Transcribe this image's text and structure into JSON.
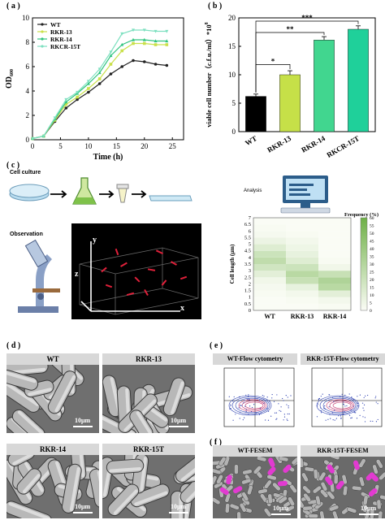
{
  "panels": {
    "a": "( a )",
    "b": "( b )",
    "c": "( c )",
    "d": "( d )",
    "e": "( e )",
    "f": "( f )"
  },
  "chart_data": [
    {
      "type": "line",
      "panel": "a",
      "xlabel": "Time (h)",
      "ylabel": "OD600",
      "xlim": [
        0,
        27
      ],
      "ylim": [
        0,
        10
      ],
      "xticks": [
        0,
        5,
        10,
        15,
        20,
        25
      ],
      "yticks": [
        0,
        2,
        4,
        6,
        8,
        10
      ],
      "legend_position": "top-left",
      "x": [
        0,
        2,
        4,
        6,
        8,
        10,
        12,
        14,
        16,
        18,
        20,
        22,
        24
      ],
      "series": [
        {
          "name": "WT",
          "marker": "circle",
          "color": "#222222",
          "values": [
            0.1,
            0.3,
            1.5,
            2.6,
            3.3,
            3.9,
            4.6,
            5.4,
            6.0,
            6.5,
            6.4,
            6.2,
            6.1
          ]
        },
        {
          "name": "RKR-13",
          "marker": "square",
          "color": "#c9e04a",
          "values": [
            0.1,
            0.3,
            1.6,
            2.9,
            3.5,
            4.2,
            5.0,
            6.2,
            7.3,
            7.9,
            7.9,
            7.8,
            7.8
          ]
        },
        {
          "name": "RKR-14",
          "marker": "triangle",
          "color": "#2fc47e",
          "values": [
            0.1,
            0.3,
            1.7,
            3.1,
            3.8,
            4.6,
            5.5,
            6.9,
            7.8,
            8.2,
            8.2,
            8.1,
            8.1
          ]
        },
        {
          "name": "RKCR-15T",
          "marker": "triangle-down",
          "color": "#7ee0c0",
          "values": [
            0.1,
            0.3,
            1.8,
            3.3,
            3.9,
            4.8,
            5.8,
            7.2,
            8.7,
            9.0,
            9.0,
            8.9,
            8.9
          ]
        }
      ]
    },
    {
      "type": "bar",
      "panel": "b",
      "ylabel": "viable cell number（c.f.u./ml）*10",
      "ylabel_exponent": "8",
      "ylim": [
        0,
        20
      ],
      "yticks": [
        0,
        5,
        10,
        15,
        20
      ],
      "categories": [
        "WT",
        "RKR-13",
        "RKR-14",
        "RKCR-15T"
      ],
      "values": [
        6.2,
        10.0,
        16.1,
        18.0
      ],
      "errors": [
        0.4,
        0.7,
        0.6,
        0.6
      ],
      "colors": [
        "#000000",
        "#c6e048",
        "#41d68f",
        "#1fd09a"
      ],
      "significance": [
        {
          "from": 0,
          "to": 1,
          "label": "*"
        },
        {
          "from": 0,
          "to": 2,
          "label": "**"
        },
        {
          "from": 0,
          "to": 3,
          "label": "***"
        }
      ]
    },
    {
      "type": "heatmap",
      "panel": "c",
      "title": "Analysis",
      "ylabel": "Cell length (μm)",
      "colorbar_label": "Frequency (%)",
      "colorbar_ticks": [
        0,
        5,
        10,
        15,
        20,
        25,
        30,
        35,
        40,
        45,
        50,
        55,
        60
      ],
      "categories": [
        "WT",
        "RKR-13",
        "RKR-14"
      ],
      "yticks": [
        "0",
        "0.5",
        "1",
        "1.5",
        "2",
        "2.5",
        "3",
        "3.5",
        "4",
        "4.5",
        "5",
        "5.5",
        "6",
        "6.5",
        "7"
      ],
      "values": [
        [
          0,
          0,
          1
        ],
        [
          0,
          1,
          3
        ],
        [
          1,
          3,
          10
        ],
        [
          2,
          8,
          28
        ],
        [
          4,
          22,
          32
        ],
        [
          10,
          28,
          22
        ],
        [
          18,
          20,
          4
        ],
        [
          25,
          12,
          1
        ],
        [
          20,
          8,
          0
        ],
        [
          12,
          5,
          0
        ],
        [
          6,
          3,
          0
        ],
        [
          2,
          1,
          0
        ],
        [
          1,
          0,
          0
        ],
        [
          0,
          0,
          0
        ]
      ]
    }
  ],
  "schematic": {
    "cell_culture": "Cell culture",
    "observation": "Observation",
    "analysis": "Analysis",
    "axis_x": "x",
    "axis_y": "y",
    "axis_z": "z"
  },
  "sem": [
    {
      "title": "WT",
      "scale": "10μm"
    },
    {
      "title": "RKR-13",
      "scale": "10μm"
    },
    {
      "title": "RKR-14",
      "scale": "10μm"
    },
    {
      "title": "RKR-15T",
      "scale": "10μm"
    }
  ],
  "flow": [
    {
      "title": "WT-Flow cytometry"
    },
    {
      "title": "RKR-15T-Flow cytometry"
    }
  ],
  "fesem": [
    {
      "title": "WT-FESEM",
      "scale": "10μm"
    },
    {
      "title": "RKR-15T-FESEM",
      "scale": "10μm"
    }
  ]
}
